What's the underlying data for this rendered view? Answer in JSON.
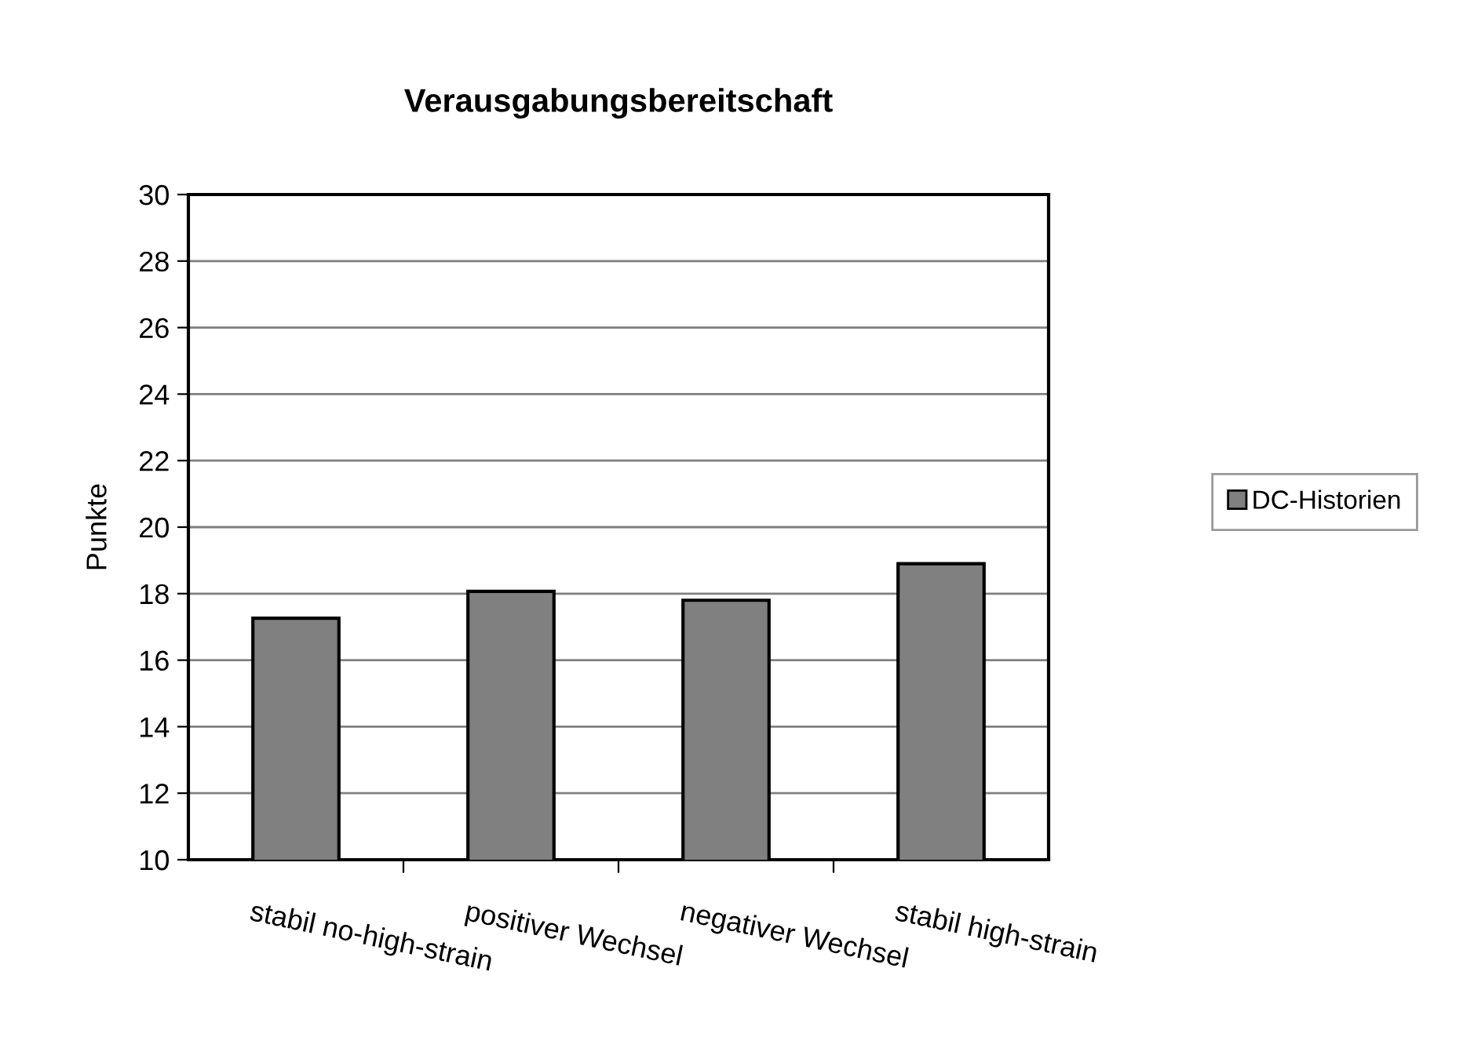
{
  "chart_data": {
    "type": "bar",
    "title": "Verausgabungsbereitschaft",
    "ylabel": "Punkte",
    "categories": [
      "stabil no-high-strain",
      "positiver Wechsel",
      "negativer Wechsel",
      "stabil high-strain"
    ],
    "series": [
      {
        "name": "DC-Historien",
        "color": "#808080",
        "values": [
          17.26,
          18.07,
          17.8,
          18.9
        ]
      }
    ],
    "ylim": [
      10,
      30
    ],
    "yticks": [
      10,
      12,
      14,
      16,
      18,
      20,
      22,
      24,
      26,
      28,
      30
    ],
    "grid": "y",
    "legend": "right"
  }
}
